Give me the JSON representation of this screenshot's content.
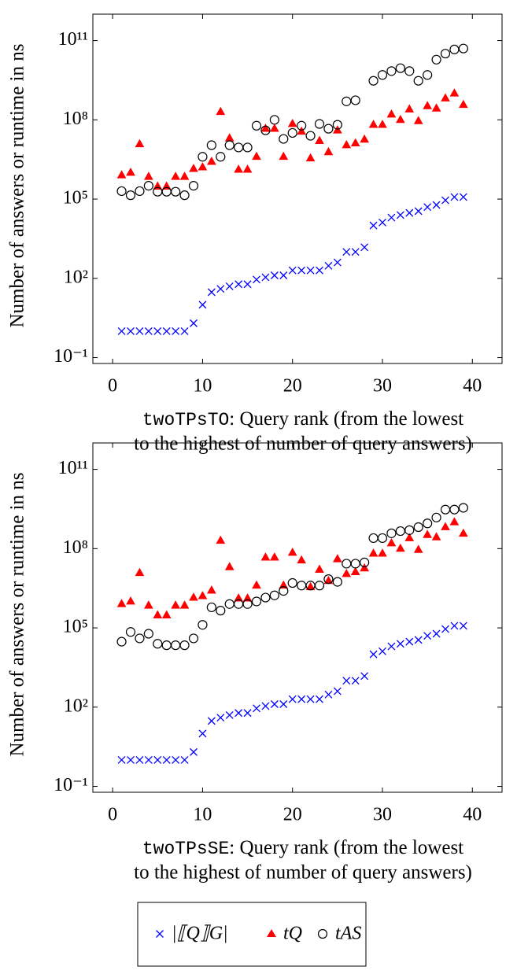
{
  "chart_data": [
    {
      "type": "scatter",
      "ylabel": "Number of answers or runtime in ns",
      "xlabel_prefix": "twoTPsTO",
      "xlabel": [
        ": Query rank (from the lowest",
        "to the highest of number of query answers)"
      ],
      "log_y": true,
      "xlim": [
        -2.2,
        43.3
      ],
      "ylim": [
        0.06,
        1000000000000.0
      ],
      "xticks": [
        0,
        10,
        20,
        30,
        40
      ],
      "yticks": [
        {
          "value": 0.1,
          "label": "10⁻¹"
        },
        {
          "value": 100,
          "label": "10²"
        },
        {
          "value": 100000,
          "label": "10⁵"
        },
        {
          "value": 100000000,
          "label": "10⁸"
        },
        {
          "value": 100000000000,
          "label": "10¹¹"
        }
      ],
      "x": [
        1,
        2,
        3,
        4,
        5,
        6,
        7,
        8,
        9,
        10,
        11,
        12,
        13,
        14,
        15,
        16,
        17,
        18,
        19,
        20,
        21,
        22,
        23,
        24,
        25,
        26,
        27,
        28,
        29,
        30,
        31,
        32,
        33,
        34,
        35,
        36,
        37,
        38,
        39
      ],
      "series": [
        {
          "name": "|⟦Q⟧G|",
          "color": "#0000ff",
          "marker": "cross",
          "values": [
            1,
            1,
            1,
            1,
            1,
            1,
            1,
            1,
            2,
            10,
            30,
            40,
            50,
            60,
            60,
            90,
            110,
            130,
            130,
            200,
            200,
            200,
            200,
            300,
            400,
            1000,
            1000,
            1500,
            10000,
            13000,
            20000,
            25000,
            30000,
            35000,
            50000,
            60000,
            90000,
            120000,
            120000
          ]
        },
        {
          "name": "tQ",
          "color": "#ff0000",
          "marker": "triangle",
          "values": [
            800000,
            1000000,
            12000000,
            700000,
            300000,
            300000,
            700000,
            700000,
            1400000,
            1600000,
            2600000,
            200000000,
            20000000,
            1300000,
            1300000,
            4000000,
            46000000,
            46000000,
            4000000,
            70000000,
            36000000,
            3500000,
            16000000,
            6000000,
            40000000,
            11000000,
            13000000,
            18000000,
            65000000,
            65000000,
            160000000,
            100000000,
            250000000,
            90000000,
            330000000,
            270000000,
            650000000,
            1000000000,
            370000000
          ]
        },
        {
          "name": "tAS",
          "color": "#000000",
          "marker": "circle",
          "values": [
            200000,
            140000,
            200000,
            320000,
            190000,
            190000,
            190000,
            140000,
            320000,
            4000000,
            11000000,
            4000000,
            11000000,
            9000000,
            9000000,
            60000000,
            40000000,
            100000000,
            19000000,
            32000000,
            60000000,
            25000000,
            70000000,
            46000000,
            65000000,
            500000000,
            550000000,
            null,
            3000000000,
            5000000000,
            7000000000,
            9000000000,
            7000000000,
            3000000000,
            5000000000,
            19000000000,
            32000000000,
            46000000000,
            50000000000
          ]
        }
      ]
    },
    {
      "type": "scatter",
      "ylabel": "Number of answers or runtime in ns",
      "xlabel_prefix": "twoTPsSE",
      "xlabel": [
        ": Query rank (from the lowest",
        "to the highest of number of query answers)"
      ],
      "log_y": true,
      "xlim": [
        -2.2,
        43.3
      ],
      "ylim": [
        0.06,
        1000000000000.0
      ],
      "xticks": [
        0,
        10,
        20,
        30,
        40
      ],
      "yticks": [
        {
          "value": 0.1,
          "label": "10⁻¹"
        },
        {
          "value": 100,
          "label": "10²"
        },
        {
          "value": 100000,
          "label": "10⁵"
        },
        {
          "value": 100000000,
          "label": "10⁸"
        },
        {
          "value": 100000000000,
          "label": "10¹¹"
        }
      ],
      "x": [
        1,
        2,
        3,
        4,
        5,
        6,
        7,
        8,
        9,
        10,
        11,
        12,
        13,
        14,
        15,
        16,
        17,
        18,
        19,
        20,
        21,
        22,
        23,
        24,
        25,
        26,
        27,
        28,
        29,
        30,
        31,
        32,
        33,
        34,
        35,
        36,
        37,
        38,
        39
      ],
      "series": [
        {
          "color": "#0000ff",
          "marker": "cross",
          "values": [
            1,
            1,
            1,
            1,
            1,
            1,
            1,
            1,
            2,
            10,
            30,
            40,
            50,
            60,
            60,
            90,
            110,
            130,
            130,
            200,
            200,
            200,
            200,
            300,
            400,
            1000,
            1000,
            1500,
            10000,
            13000,
            20000,
            25000,
            30000,
            35000,
            50000,
            60000,
            90000,
            120000,
            120000
          ]
        },
        {
          "color": "#ff0000",
          "marker": "triangle",
          "values": [
            800000,
            1000000,
            12000000,
            700000,
            300000,
            300000,
            700000,
            700000,
            1400000,
            1600000,
            2600000,
            200000000,
            20000000,
            1300000,
            1300000,
            4000000,
            46000000,
            46000000,
            4000000,
            70000000,
            36000000,
            3500000,
            16000000,
            6000000,
            40000000,
            11000000,
            13000000,
            18000000,
            65000000,
            65000000,
            160000000,
            100000000,
            250000000,
            90000000,
            330000000,
            270000000,
            650000000,
            1000000000,
            370000000
          ]
        },
        {
          "color": "#000000",
          "marker": "circle",
          "values": [
            30000,
            70000,
            40000,
            60000,
            25000,
            22000,
            22000,
            22000,
            40000,
            130000,
            600000,
            450000,
            800000,
            800000,
            800000,
            1000000,
            1400000,
            1700000,
            2500000,
            5000000,
            4000000,
            4000000,
            4000000,
            7000000,
            5500000,
            27000000,
            27000000,
            30000000,
            250000000,
            250000000,
            380000000,
            460000000,
            500000000,
            650000000,
            900000000,
            1500000000,
            3000000000,
            3000000000,
            3500000000
          ]
        }
      ]
    }
  ]
}
